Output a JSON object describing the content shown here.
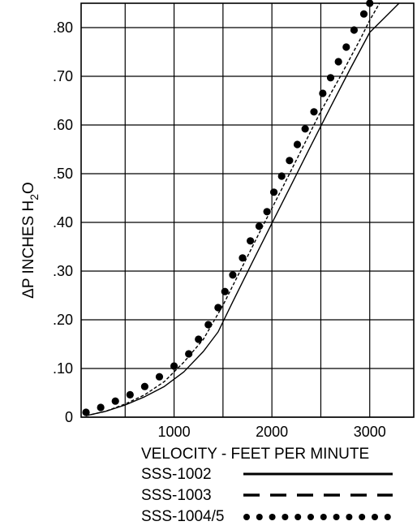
{
  "chart_data": {
    "type": "line",
    "title": "",
    "xlabel": "VELOCITY - FEET PER MINUTE",
    "ylabel_main": "ΔP INCHES H",
    "ylabel_sub": "2",
    "ylabel_tail": "O",
    "xlim": [
      50,
      3450
    ],
    "ylim": [
      0,
      0.85
    ],
    "x_ticks": [
      {
        "value": 1000,
        "label": "1000"
      },
      {
        "value": 2000,
        "label": "2000"
      },
      {
        "value": 3000,
        "label": "3000"
      }
    ],
    "y_ticks": [
      {
        "value": 0,
        "label": "0"
      },
      {
        "value": 0.1,
        "label": ".10"
      },
      {
        "value": 0.2,
        "label": ".20"
      },
      {
        "value": 0.3,
        "label": ".30"
      },
      {
        "value": 0.4,
        "label": ".40"
      },
      {
        "value": 0.5,
        "label": ".50"
      },
      {
        "value": 0.6,
        "label": ".60"
      },
      {
        "value": 0.7,
        "label": ".70"
      },
      {
        "value": 0.8,
        "label": ".80"
      }
    ],
    "x_gridlines": [
      500,
      1000,
      1500,
      2000,
      2500,
      3000
    ],
    "y_gridlines": [
      0,
      0.1,
      0.2,
      0.3,
      0.4,
      0.5,
      0.6,
      0.7,
      0.8
    ],
    "legend_placement": "bottom",
    "series": [
      {
        "name": "SSS-1002",
        "style": "solid",
        "x": [
          100,
          300,
          500,
          700,
          900,
          1100,
          1300,
          1450,
          1600,
          1800,
          2000,
          2200,
          2400,
          2600,
          2800,
          3000,
          3200,
          3300
        ],
        "y": [
          0.003,
          0.012,
          0.025,
          0.042,
          0.063,
          0.093,
          0.135,
          0.175,
          0.237,
          0.318,
          0.398,
          0.478,
          0.558,
          0.637,
          0.715,
          0.79,
          0.83,
          0.85
        ]
      },
      {
        "name": "SSS-1003",
        "style": "dashed",
        "x": [
          100,
          300,
          500,
          700,
          900,
          1100,
          1300,
          1500,
          1700,
          1900,
          2100,
          2300,
          2500,
          2700,
          2900,
          3000,
          3100
        ],
        "y": [
          0.003,
          0.012,
          0.027,
          0.046,
          0.073,
          0.113,
          0.16,
          0.23,
          0.31,
          0.39,
          0.468,
          0.548,
          0.628,
          0.7,
          0.775,
          0.815,
          0.85
        ]
      },
      {
        "name": "SSS-1004/5",
        "style": "dotted",
        "x": [
          100,
          250,
          400,
          550,
          700,
          850,
          1000,
          1150,
          1250,
          1350,
          1450,
          1520,
          1600,
          1700,
          1780,
          1870,
          1950,
          2020,
          2100,
          2180,
          2260,
          2340,
          2430,
          2520,
          2600,
          2680,
          2760,
          2840,
          2940,
          3000
        ],
        "y": [
          0.01,
          0.02,
          0.033,
          0.046,
          0.063,
          0.083,
          0.105,
          0.13,
          0.16,
          0.19,
          0.225,
          0.258,
          0.292,
          0.327,
          0.362,
          0.392,
          0.422,
          0.462,
          0.495,
          0.527,
          0.56,
          0.592,
          0.627,
          0.665,
          0.697,
          0.73,
          0.76,
          0.795,
          0.828,
          0.85
        ]
      }
    ]
  }
}
